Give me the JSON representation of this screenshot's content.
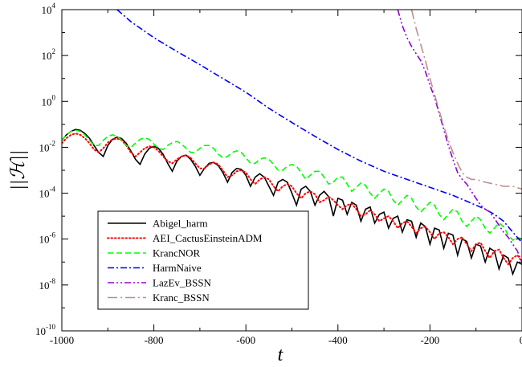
{
  "chart_data": {
    "type": "line",
    "xlabel": "t",
    "ylabel": "||ℋ||",
    "xlim": [
      -1000,
      0
    ],
    "ylim": [
      1e-10,
      10000.0
    ],
    "yscale": "log",
    "grid": false,
    "legend_position": "bottom-left",
    "xticks": [
      -1000,
      -800,
      -600,
      -400,
      -200,
      0
    ],
    "xtick_labels": [
      "-1000",
      "-800",
      "-600",
      "-400",
      "-200",
      "0"
    ],
    "yticks": [
      {
        "value": 1e-10,
        "base": "10",
        "exp": "-10"
      },
      {
        "value": 1e-08,
        "base": "10",
        "exp": "-8"
      },
      {
        "value": 1e-06,
        "base": "10",
        "exp": "-6"
      },
      {
        "value": 0.0001,
        "base": "10",
        "exp": "-4"
      },
      {
        "value": 0.01,
        "base": "10",
        "exp": "-2"
      },
      {
        "value": 1,
        "base": "10",
        "exp": "0"
      },
      {
        "value": 100,
        "base": "10",
        "exp": "2"
      },
      {
        "value": 10000,
        "base": "10",
        "exp": "4"
      }
    ],
    "series": [
      {
        "name": "Abigel_harm",
        "color": "#000000",
        "dash": "solid",
        "x": [
          -1000,
          -990,
          -980,
          -970,
          -960,
          -950,
          -940,
          -930,
          -920,
          -910,
          -900,
          -890,
          -880,
          -870,
          -860,
          -850,
          -840,
          -830,
          -820,
          -810,
          -800,
          -790,
          -780,
          -770,
          -760,
          -750,
          -740,
          -730,
          -720,
          -710,
          -700,
          -690,
          -680,
          -670,
          -660,
          -650,
          -640,
          -630,
          -620,
          -610,
          -600,
          -590,
          -580,
          -570,
          -560,
          -550,
          -540,
          -530,
          -520,
          -510,
          -500,
          -490,
          -480,
          -470,
          -460,
          -450,
          -440,
          -430,
          -420,
          -410,
          -400,
          -390,
          -380,
          -370,
          -360,
          -350,
          -340,
          -330,
          -320,
          -310,
          -300,
          -290,
          -280,
          -270,
          -260,
          -250,
          -240,
          -230,
          -220,
          -210,
          -200,
          -190,
          -180,
          -170,
          -160,
          -150,
          -140,
          -130,
          -120,
          -110,
          -100,
          -90,
          -80,
          -70,
          -60,
          -50,
          -40,
          -30,
          -20,
          -10,
          0
        ],
        "y": [
          0.02,
          0.035,
          0.05,
          0.06,
          0.055,
          0.04,
          0.025,
          0.012,
          0.006,
          0.004,
          0.012,
          0.022,
          0.028,
          0.024,
          0.015,
          0.007,
          0.003,
          0.0018,
          0.005,
          0.009,
          0.011,
          0.009,
          0.005,
          0.002,
          0.0009,
          0.0025,
          0.004,
          0.0045,
          0.003,
          0.0015,
          0.0006,
          0.0012,
          0.002,
          0.0022,
          0.0016,
          0.0008,
          0.0003,
          0.0008,
          0.0012,
          0.0011,
          0.0006,
          0.0002,
          0.0005,
          0.0007,
          0.0005,
          0.0002,
          8e-05,
          0.0003,
          0.0004,
          0.0003,
          0.0001,
          3e-05,
          0.00015,
          0.0002,
          0.00012,
          3e-05,
          8e-05,
          0.00012,
          7e-05,
          1e-05,
          6e-05,
          5e-05,
          1.2e-05,
          4e-05,
          3e-05,
          6e-06,
          2e-05,
          2.5e-05,
          5e-06,
          1.2e-05,
          1.5e-05,
          3e-06,
          8e-06,
          1e-05,
          2e-06,
          7e-06,
          6e-06,
          1.2e-06,
          5e-06,
          3.5e-06,
          6e-07,
          3e-06,
          2.5e-06,
          4e-07,
          1.8e-06,
          1.5e-06,
          2e-07,
          1e-06,
          8e-07,
          1.5e-07,
          6e-07,
          5e-07,
          1e-07,
          4e-07,
          3e-07,
          5e-08,
          2e-07,
          1.5e-07,
          3e-08,
          1e-07,
          8e-08
        ]
      },
      {
        "name": "AEI_CactusEinsteinADM",
        "color": "#ff0000",
        "dash": "dotted",
        "x": [
          -1000,
          -990,
          -980,
          -970,
          -960,
          -950,
          -940,
          -930,
          -920,
          -910,
          -900,
          -890,
          -880,
          -870,
          -860,
          -850,
          -840,
          -830,
          -820,
          -810,
          -800,
          -790,
          -780,
          -770,
          -760,
          -750,
          -740,
          -730,
          -720,
          -710,
          -700,
          -690,
          -680,
          -670,
          -660,
          -650,
          -640,
          -630,
          -620,
          -610,
          -600,
          -590,
          -580,
          -570,
          -560,
          -550,
          -540,
          -530,
          -520,
          -510,
          -500,
          -490,
          -480,
          -470,
          -460,
          -450,
          -440,
          -430,
          -420,
          -410,
          -400,
          -390,
          -380,
          -370,
          -360,
          -350,
          -340,
          -330,
          -320,
          -310,
          -300,
          -290,
          -280,
          -270,
          -260,
          -250,
          -240,
          -230,
          -220,
          -210,
          -200,
          -190,
          -180,
          -170,
          -160,
          -150,
          -140,
          -130,
          -120,
          -110,
          -100,
          -90,
          -80,
          -70,
          -60,
          -50,
          -40,
          -30,
          -20,
          -10,
          0
        ],
        "y": [
          0.015,
          0.025,
          0.035,
          0.04,
          0.035,
          0.025,
          0.015,
          0.008,
          0.006,
          0.009,
          0.016,
          0.022,
          0.024,
          0.02,
          0.012,
          0.006,
          0.004,
          0.006,
          0.009,
          0.011,
          0.01,
          0.007,
          0.004,
          0.0025,
          0.002,
          0.003,
          0.004,
          0.0045,
          0.0035,
          0.002,
          0.0012,
          0.0012,
          0.0018,
          0.0022,
          0.0018,
          0.001,
          0.0005,
          0.0006,
          0.0009,
          0.001,
          0.0008,
          0.0004,
          0.00025,
          0.0004,
          0.0005,
          0.0004,
          0.0002,
          0.00012,
          0.0002,
          0.00025,
          0.0002,
          0.0001,
          6e-05,
          0.0001,
          0.00012,
          9e-05,
          4e-05,
          5e-05,
          7e-05,
          5e-05,
          3e-05,
          2e-05,
          3e-05,
          3.5e-05,
          2e-05,
          1e-05,
          1.2e-05,
          1.8e-05,
          1.2e-05,
          6e-06,
          8e-06,
          1e-05,
          6e-06,
          3e-06,
          5e-06,
          6e-06,
          3.5e-06,
          1.8e-06,
          3e-06,
          3.5e-06,
          2e-06,
          1e-06,
          1.8e-06,
          2e-06,
          1.2e-06,
          6e-07,
          1e-06,
          1.2e-06,
          6e-07,
          3e-07,
          6e-07,
          7e-07,
          3e-07,
          1.5e-07,
          3e-07,
          3.5e-07,
          1.5e-07,
          8e-08,
          1.5e-07,
          2e-07,
          1e-07
        ]
      },
      {
        "name": "KrancNOR",
        "color": "#00ff00",
        "dash": "dashed",
        "x": [
          -1000,
          -990,
          -980,
          -970,
          -960,
          -950,
          -940,
          -930,
          -920,
          -910,
          -900,
          -890,
          -880,
          -870,
          -860,
          -850,
          -840,
          -830,
          -820,
          -810,
          -800,
          -790,
          -780,
          -770,
          -760,
          -750,
          -740,
          -730,
          -720,
          -710,
          -700,
          -690,
          -680,
          -670,
          -660,
          -650,
          -640,
          -630,
          -620,
          -610,
          -600,
          -590,
          -580,
          -570,
          -560,
          -550,
          -540,
          -530,
          -520,
          -510,
          -500,
          -490,
          -480,
          -470,
          -460,
          -450,
          -440,
          -430,
          -420,
          -410,
          -400,
          -390,
          -380,
          -370,
          -360,
          -350,
          -340,
          -330,
          -320,
          -310,
          -300,
          -290,
          -280,
          -270,
          -260,
          -250,
          -240,
          -230,
          -220,
          -210,
          -200,
          -190,
          -180,
          -170,
          -160,
          -150,
          -140,
          -130,
          -120,
          -110,
          -100,
          -90,
          -80,
          -70,
          -60,
          -50,
          -40,
          -30,
          -20,
          -10,
          0
        ],
        "y": [
          0.02,
          0.035,
          0.05,
          0.055,
          0.05,
          0.035,
          0.02,
          0.012,
          0.012,
          0.02,
          0.03,
          0.035,
          0.03,
          0.02,
          0.012,
          0.01,
          0.015,
          0.022,
          0.026,
          0.022,
          0.014,
          0.009,
          0.008,
          0.012,
          0.016,
          0.018,
          0.014,
          0.009,
          0.006,
          0.006,
          0.009,
          0.012,
          0.012,
          0.009,
          0.005,
          0.0035,
          0.004,
          0.006,
          0.007,
          0.006,
          0.0035,
          0.002,
          0.002,
          0.003,
          0.0035,
          0.003,
          0.0018,
          0.001,
          0.001,
          0.0015,
          0.0018,
          0.0015,
          0.0008,
          0.0004,
          0.0006,
          0.0009,
          0.0009,
          0.0005,
          0.00025,
          0.0003,
          0.0005,
          0.0005,
          0.00025,
          0.00012,
          0.00018,
          0.00028,
          0.00022,
          0.0001,
          6e-05,
          0.0001,
          0.00015,
          0.00012,
          5e-05,
          3e-05,
          5e-05,
          8e-05,
          6e-05,
          2.5e-05,
          1.5e-05,
          2.5e-05,
          4e-05,
          3e-05,
          1.2e-05,
          7e-06,
          1.2e-05,
          2e-05,
          1.5e-05,
          6e-06,
          3.5e-06,
          6e-06,
          1e-05,
          7e-06,
          3e-06,
          1.8e-06,
          3e-06,
          5e-06,
          3.5e-06,
          1.5e-06,
          9e-07,
          1.2e-06,
          1e-06
        ]
      },
      {
        "name": "HarmNaive",
        "color": "#0000ff",
        "dash": "dashdot",
        "x": [
          -880,
          -850,
          -800,
          -750,
          -700,
          -650,
          -600,
          -550,
          -500,
          -450,
          -400,
          -350,
          -300,
          -250,
          -200,
          -150,
          -100,
          -80,
          -60,
          -40,
          -20,
          0
        ],
        "y": [
          10000,
          3000,
          600,
          150,
          40,
          10,
          2.5,
          0.5,
          0.12,
          0.03,
          0.008,
          0.0025,
          0.0009,
          0.0004,
          0.00018,
          8e-05,
          3e-05,
          2e-05,
          1.2e-05,
          6e-06,
          2e-06,
          7e-07
        ]
      },
      {
        "name": "LazEv_BSSN",
        "color": "#9400d3",
        "dash": "dashdotdot",
        "x": [
          -270,
          -260,
          -250,
          -240,
          -230,
          -220,
          -210,
          -200,
          -190,
          -180,
          -170,
          -160,
          -150,
          -140,
          -130,
          -120,
          -110,
          -100,
          -90,
          -80,
          -70,
          -60,
          -50,
          -40,
          -30,
          -20,
          -10,
          0
        ],
        "y": [
          10000,
          2000,
          600,
          250,
          120,
          60,
          20,
          5,
          1.5,
          0.3,
          0.06,
          0.012,
          0.003,
          0.0008,
          0.0004,
          0.00025,
          0.00012,
          6e-05,
          3e-05,
          2e-05,
          1.5e-05,
          8e-06,
          4e-06,
          2e-06,
          1.2e-06,
          6e-07,
          3e-07,
          1e-07
        ]
      },
      {
        "name": "Kranc_BSSN",
        "color": "#bc8f8f",
        "dash": "longdashdot",
        "x": [
          -240,
          -230,
          -220,
          -210,
          -200,
          -190,
          -180,
          -170,
          -160,
          -150,
          -140,
          -130,
          -120,
          -110,
          -100,
          -80,
          -60,
          -40,
          -20,
          0
        ],
        "y": [
          10000,
          1500,
          300,
          60,
          10,
          2,
          0.4,
          0.08,
          0.02,
          0.006,
          0.002,
          0.0008,
          0.0005,
          0.0004,
          0.0004,
          0.0003,
          0.00025,
          0.0002,
          0.0002,
          0.00015
        ]
      }
    ]
  }
}
